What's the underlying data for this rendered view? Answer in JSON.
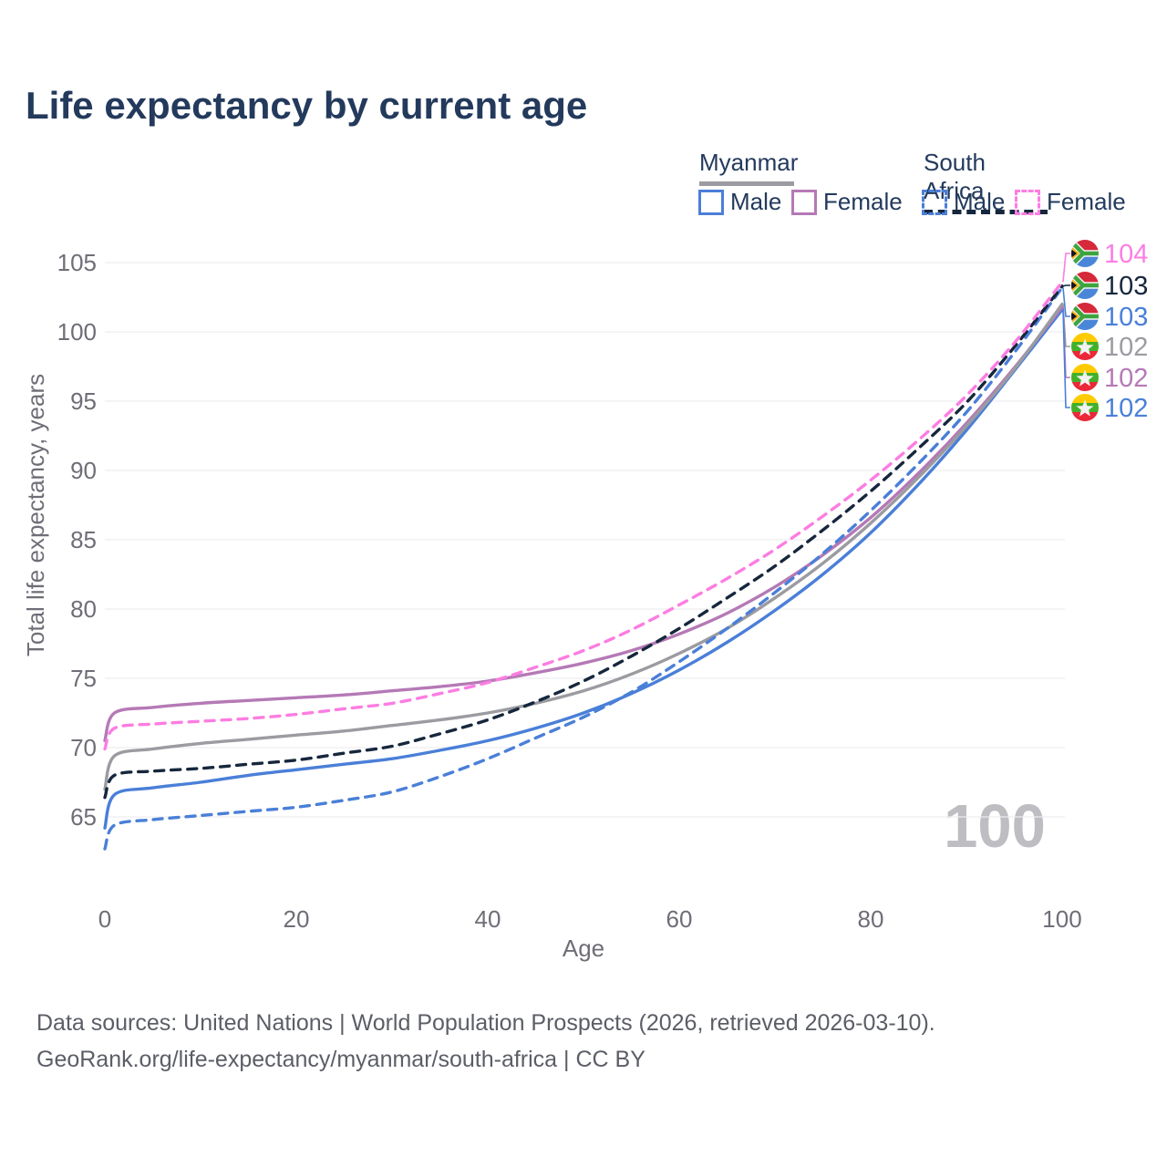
{
  "title": "Life expectancy by current age",
  "watermark": "100",
  "legend": {
    "groups": [
      {
        "name": "Myanmar",
        "line_style": "solid",
        "entries": [
          {
            "label": "Male",
            "color": "#4a7fd8"
          },
          {
            "label": "Female",
            "color": "#b579b6"
          }
        ]
      },
      {
        "name": "South Africa",
        "line_style": "dashed",
        "entries": [
          {
            "label": "Male",
            "color": "#4a7fd8"
          },
          {
            "label": "Female",
            "color": "#fc7de2"
          }
        ]
      }
    ]
  },
  "chart_data": {
    "type": "line",
    "title": "Life expectancy by current age",
    "xlabel": "Age",
    "ylabel": "Total life expectancy, years",
    "xlim": [
      0,
      100
    ],
    "ylim": [
      62,
      106
    ],
    "x_ticks": [
      0,
      20,
      40,
      60,
      80,
      100
    ],
    "y_ticks": [
      65,
      70,
      75,
      80,
      85,
      90,
      95,
      100,
      105
    ],
    "grid": true,
    "legend_position": "top-right",
    "x": [
      0,
      1,
      5,
      10,
      15,
      20,
      25,
      30,
      35,
      40,
      45,
      50,
      55,
      60,
      65,
      70,
      75,
      80,
      85,
      90,
      95,
      100
    ],
    "series": [
      {
        "name": "South Africa Female",
        "country": "south-africa",
        "sex": "female",
        "color": "#fc7de2",
        "dash": true,
        "end_label": "104",
        "values": [
          69.9,
          71.4,
          71.7,
          71.9,
          72.1,
          72.4,
          72.8,
          73.2,
          73.9,
          74.7,
          75.8,
          77.0,
          78.5,
          80.3,
          82.2,
          84.3,
          86.7,
          89.3,
          92.2,
          95.4,
          99.2,
          103.6
        ]
      },
      {
        "name": "South Africa",
        "country": "south-africa",
        "sex": "both",
        "color": "#16273d",
        "dash": true,
        "end_label": "103",
        "values": [
          66.4,
          68.0,
          68.3,
          68.5,
          68.8,
          69.1,
          69.6,
          70.1,
          71.0,
          72.0,
          73.3,
          74.8,
          76.6,
          78.6,
          80.8,
          83.1,
          85.7,
          88.5,
          91.6,
          94.9,
          98.9,
          103.3
        ]
      },
      {
        "name": "South Africa Male",
        "country": "south-africa",
        "sex": "male",
        "color": "#4a7fd8",
        "dash": true,
        "end_label": "103",
        "values": [
          62.7,
          64.4,
          64.8,
          65.1,
          65.4,
          65.7,
          66.2,
          66.8,
          67.9,
          69.2,
          70.7,
          72.2,
          74.0,
          76.2,
          78.6,
          81.2,
          84.0,
          87.1,
          90.5,
          94.2,
          98.5,
          103.2
        ]
      },
      {
        "name": "Myanmar",
        "country": "myanmar",
        "sex": "both",
        "color": "#9b9ba1",
        "dash": false,
        "end_label": "102",
        "values": [
          67.0,
          69.4,
          69.9,
          70.3,
          70.6,
          70.9,
          71.2,
          71.6,
          72.0,
          72.5,
          73.2,
          74.1,
          75.3,
          76.8,
          78.6,
          80.8,
          83.3,
          86.2,
          89.5,
          93.2,
          97.3,
          102.0
        ]
      },
      {
        "name": "Myanmar Female",
        "country": "myanmar",
        "sex": "female",
        "color": "#b579b6",
        "dash": false,
        "end_label": "102",
        "values": [
          70.5,
          72.5,
          72.9,
          73.2,
          73.4,
          73.6,
          73.8,
          74.1,
          74.4,
          74.8,
          75.4,
          76.1,
          77.0,
          78.2,
          79.7,
          81.6,
          83.9,
          86.6,
          89.8,
          93.4,
          97.4,
          101.8
        ]
      },
      {
        "name": "Myanmar Male",
        "country": "myanmar",
        "sex": "male",
        "color": "#4a7fd8",
        "dash": false,
        "end_label": "102",
        "values": [
          64.2,
          66.6,
          67.1,
          67.5,
          68.0,
          68.4,
          68.8,
          69.2,
          69.8,
          70.5,
          71.4,
          72.5,
          73.9,
          75.6,
          77.6,
          79.9,
          82.5,
          85.5,
          89.0,
          92.9,
          97.2,
          101.6
        ]
      }
    ],
    "end_labels": [
      {
        "value": "104",
        "flag": "south-africa",
        "color": "#fc7de2"
      },
      {
        "value": "103",
        "flag": "south-africa",
        "color": "#16273d"
      },
      {
        "value": "103",
        "flag": "south-africa",
        "color": "#4a7fd8"
      },
      {
        "value": "102",
        "flag": "myanmar",
        "color": "#9b9ba1"
      },
      {
        "value": "102",
        "flag": "myanmar",
        "color": "#b579b6"
      },
      {
        "value": "102",
        "flag": "myanmar",
        "color": "#4a7fd8"
      }
    ]
  },
  "footer": {
    "line1": "Data sources: United Nations | World Population Prospects (2026, retrieved 2026-03-10).",
    "line2": "GeoRank.org/life-expectancy/myanmar/south-africa | CC BY"
  }
}
